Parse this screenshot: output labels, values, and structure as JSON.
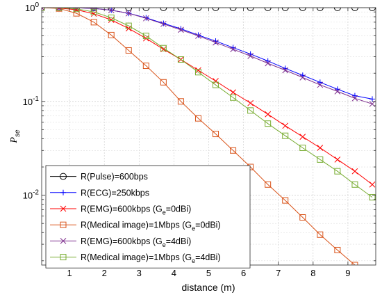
{
  "chart_data": {
    "type": "line",
    "xlabel": "distance (m)",
    "ylabel": "P_se",
    "y_scale": "log",
    "xlim": [
      0.2,
      9.8
    ],
    "ylim": [
      0.0018,
      1.0
    ],
    "grid": true,
    "legend_position": "bottom-left",
    "x_ticks": [
      1,
      2,
      3,
      4,
      5,
      6,
      7,
      8,
      9
    ],
    "x_tick_labels": [
      "1",
      "2",
      "3",
      "4",
      "5",
      "6",
      "7",
      "8",
      "9"
    ],
    "y_ticks": [
      0.01,
      0.1,
      1
    ],
    "y_tick_labels": [
      {
        "base": "10",
        "exp": "-2"
      },
      {
        "base": "10",
        "exp": "-1"
      },
      {
        "base": "10",
        "exp": "0"
      }
    ],
    "x": [
      0.2,
      0.7,
      1.2,
      1.7,
      2.2,
      2.7,
      3.2,
      3.7,
      4.2,
      4.7,
      5.2,
      5.7,
      6.2,
      6.7,
      7.2,
      7.7,
      8.2,
      8.7,
      9.2,
      9.7
    ],
    "series": [
      {
        "name": "R(Pulse)=600bps",
        "color": "#000000",
        "marker": "circle",
        "values": [
          1,
          1,
          1,
          1,
          1,
          1,
          1,
          1,
          1,
          1,
          1,
          1,
          1,
          1,
          1,
          1,
          1,
          1,
          1,
          1
        ]
      },
      {
        "name": "R(ECG)=250kbps",
        "color": "#0000ff",
        "marker": "plus",
        "values": [
          1,
          1,
          0.995,
          0.98,
          0.94,
          0.87,
          0.78,
          0.68,
          0.595,
          0.51,
          0.44,
          0.375,
          0.32,
          0.27,
          0.225,
          0.19,
          0.16,
          0.135,
          0.115,
          0.106
        ]
      },
      {
        "name": "R(EMG)=600kbps  (G_e=0dBi)",
        "color": "#ff0000",
        "marker": "x",
        "values": [
          1,
          0.99,
          0.95,
          0.86,
          0.74,
          0.6,
          0.47,
          0.36,
          0.28,
          0.215,
          0.165,
          0.125,
          0.096,
          0.073,
          0.055,
          0.042,
          0.032,
          0.024,
          0.018,
          0.013
        ]
      },
      {
        "name": "R(Medical image)=1Mbps  (G_e=0dBi)",
        "color": "#d95319",
        "marker": "square",
        "values": [
          1,
          0.98,
          0.87,
          0.7,
          0.51,
          0.35,
          0.24,
          0.16,
          0.1,
          0.066,
          0.045,
          0.03,
          0.02,
          0.013,
          0.0088,
          0.0058,
          0.0038,
          0.0026,
          0.0018,
          0.00125
        ]
      },
      {
        "name": "R(EMG)=600kbps  (G_e=4dBi)",
        "color": "#7e2f8e",
        "marker": "x",
        "values": [
          1,
          1,
          0.995,
          0.98,
          0.94,
          0.87,
          0.77,
          0.67,
          0.58,
          0.5,
          0.425,
          0.36,
          0.305,
          0.255,
          0.215,
          0.18,
          0.15,
          0.128,
          0.108,
          0.094
        ]
      },
      {
        "name": "R(Medical image)=1Mbps  (G_e=4dBi)",
        "color": "#77ac30",
        "marker": "square",
        "values": [
          1,
          1,
          0.97,
          0.9,
          0.78,
          0.64,
          0.5,
          0.37,
          0.28,
          0.205,
          0.15,
          0.11,
          0.08,
          0.058,
          0.043,
          0.032,
          0.024,
          0.018,
          0.013,
          0.0095
        ]
      }
    ]
  }
}
